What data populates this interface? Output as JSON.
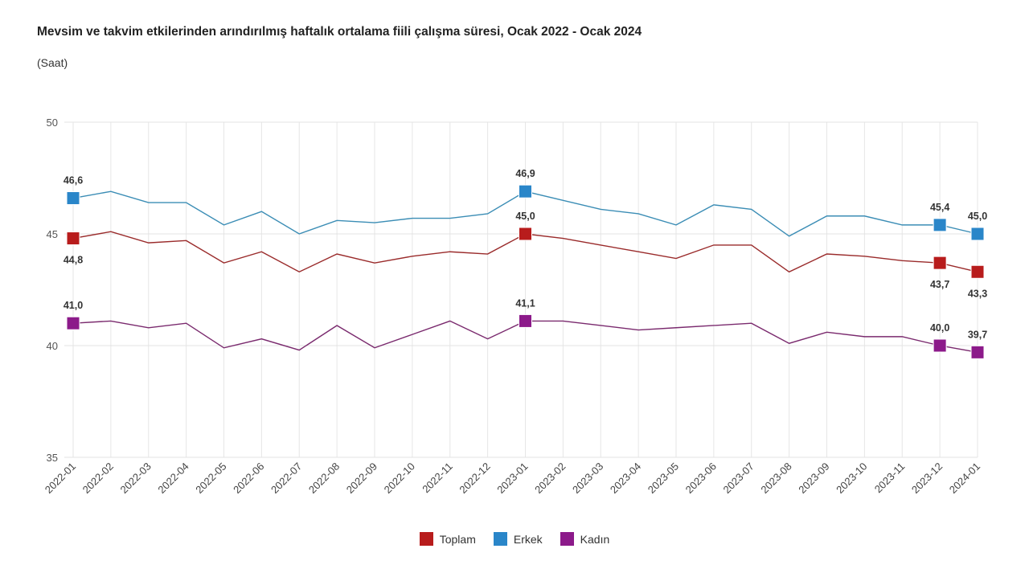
{
  "chart_data": {
    "type": "line",
    "title": "Mevsim ve takvim etkilerinden arındırılmış haftalık ortalama fiili çalışma süresi, Ocak 2022 - Ocak 2024",
    "subtitle": "(Saat)",
    "xlabel": "",
    "ylabel": "",
    "ylim": [
      35,
      50
    ],
    "yticks": [
      "35",
      "40",
      "45",
      "50"
    ],
    "grid": true,
    "legend_position": "bottom",
    "categories": [
      "2022-01",
      "2022-02",
      "2022-03",
      "2022-04",
      "2022-05",
      "2022-06",
      "2022-07",
      "2022-08",
      "2022-09",
      "2022-10",
      "2022-11",
      "2022-12",
      "2023-01",
      "2023-02",
      "2023-03",
      "2023-04",
      "2023-05",
      "2023-06",
      "2023-07",
      "2023-08",
      "2023-09",
      "2023-10",
      "2023-11",
      "2023-12",
      "2024-01"
    ],
    "series": [
      {
        "name": "Toplam",
        "color": "#b81c1c",
        "line_color": "#9a2b2b",
        "values": [
          44.8,
          45.1,
          44.6,
          44.7,
          43.7,
          44.2,
          43.3,
          44.1,
          43.7,
          44.0,
          44.2,
          44.1,
          45.0,
          44.8,
          44.5,
          44.2,
          43.9,
          44.5,
          44.5,
          43.3,
          44.1,
          44.0,
          43.8,
          43.7,
          43.3
        ],
        "labeled_points": [
          {
            "index": 0,
            "text": "44,8",
            "pos": "below"
          },
          {
            "index": 12,
            "text": "45,0",
            "pos": "above"
          },
          {
            "index": 23,
            "text": "43,7",
            "pos": "below"
          },
          {
            "index": 24,
            "text": "43,3",
            "pos": "below"
          }
        ]
      },
      {
        "name": "Erkek",
        "color": "#2a86c9",
        "line_color": "#3b8db5",
        "values": [
          46.6,
          46.9,
          46.4,
          46.4,
          45.4,
          46.0,
          45.0,
          45.6,
          45.5,
          45.7,
          45.7,
          45.9,
          46.9,
          46.5,
          46.1,
          45.9,
          45.4,
          46.3,
          46.1,
          44.9,
          45.8,
          45.8,
          45.4,
          45.4,
          45.0
        ],
        "labeled_points": [
          {
            "index": 0,
            "text": "46,6",
            "pos": "above"
          },
          {
            "index": 12,
            "text": "46,9",
            "pos": "above"
          },
          {
            "index": 23,
            "text": "45,4",
            "pos": "above"
          },
          {
            "index": 24,
            "text": "45,0",
            "pos": "above"
          }
        ]
      },
      {
        "name": "Kadın",
        "color": "#8c1a8a",
        "line_color": "#7a2a6e",
        "values": [
          41.0,
          41.1,
          40.8,
          41.0,
          39.9,
          40.3,
          39.8,
          40.9,
          39.9,
          40.5,
          41.1,
          40.3,
          41.1,
          41.1,
          40.9,
          40.7,
          40.8,
          40.9,
          41.0,
          40.1,
          40.6,
          40.4,
          40.4,
          40.0,
          39.7
        ],
        "labeled_points": [
          {
            "index": 0,
            "text": "41,0",
            "pos": "above"
          },
          {
            "index": 12,
            "text": "41,1",
            "pos": "above"
          },
          {
            "index": 23,
            "text": "40,0",
            "pos": "above"
          },
          {
            "index": 24,
            "text": "39,7",
            "pos": "above"
          }
        ]
      }
    ]
  }
}
